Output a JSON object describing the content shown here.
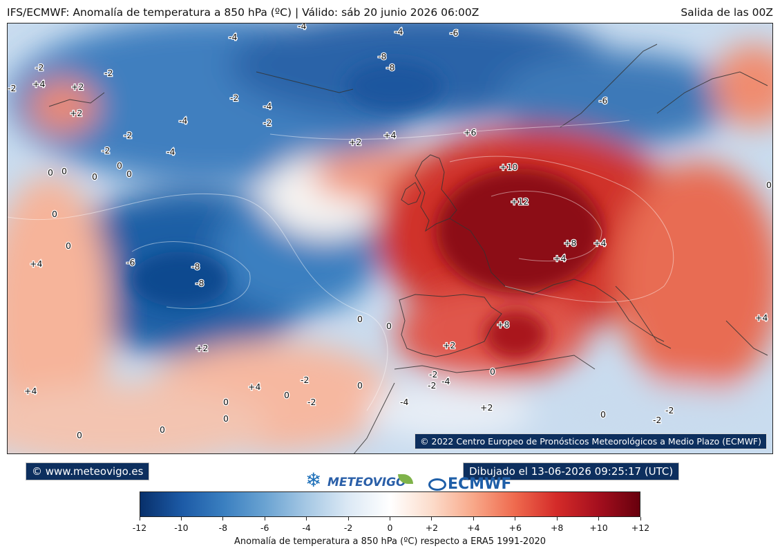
{
  "header": {
    "title": "IFS/ECMWF: Anomalía de temperatura a 850 hPa (ºC) | Válido: sáb 20 junio 2026 06:00Z",
    "run": "Salida de las 00Z"
  },
  "map": {
    "credit": "© 2022 Centro Europeo de Pronósticos Meteorológicos a Medio Plazo (ECMWF)",
    "contour_labels": [
      "-4",
      "-4",
      "-6",
      "-2",
      "-2",
      "+4",
      "+2",
      "+2",
      "-2",
      "-4",
      "-8",
      "-8",
      "-2",
      "-4",
      "-2",
      "-2",
      "-4",
      "-4",
      "-2",
      "-6",
      "+2",
      "+4",
      "+6",
      "+10",
      "+12",
      "+8",
      "+4",
      "+4",
      "0",
      "0",
      "0",
      "0",
      "0",
      "0",
      "-6",
      "-8",
      "-8",
      "+4",
      "0",
      "0",
      "+2",
      "-2",
      "-4",
      "-2",
      "0",
      "+8",
      "+4",
      "0",
      "+2",
      "0",
      "-4",
      "+2",
      "-2",
      "+4",
      "0",
      "-2",
      "0",
      "0",
      "0",
      "0",
      "0",
      "0",
      "-2",
      "-2",
      "+4"
    ]
  },
  "footer": {
    "site": "© www.meteovigo.es",
    "drawn": "Dibujado el 13-06-2026 09:25:17 (UTC)",
    "logo_meteovigo": "METEOVIGO",
    "logo_ecmwf": "ECMWF"
  },
  "colorbar": {
    "ticks": [
      "-12",
      "-10",
      "-8",
      "-6",
      "-4",
      "-2",
      "0",
      "+2",
      "+4",
      "+6",
      "+8",
      "+10",
      "+12"
    ],
    "title": "Anomalía de temperatura a 850 hPa (ºC) respecto a ERA5 1991-2020",
    "stops": [
      "#08306b",
      "#1c5aa6",
      "#3a7fc0",
      "#6aa3d2",
      "#a6c8e4",
      "#dce9f5",
      "#ffffff",
      "#fcdccb",
      "#f8a889",
      "#ef6a4e",
      "#d42b29",
      "#a50f1e",
      "#67000d"
    ]
  }
}
